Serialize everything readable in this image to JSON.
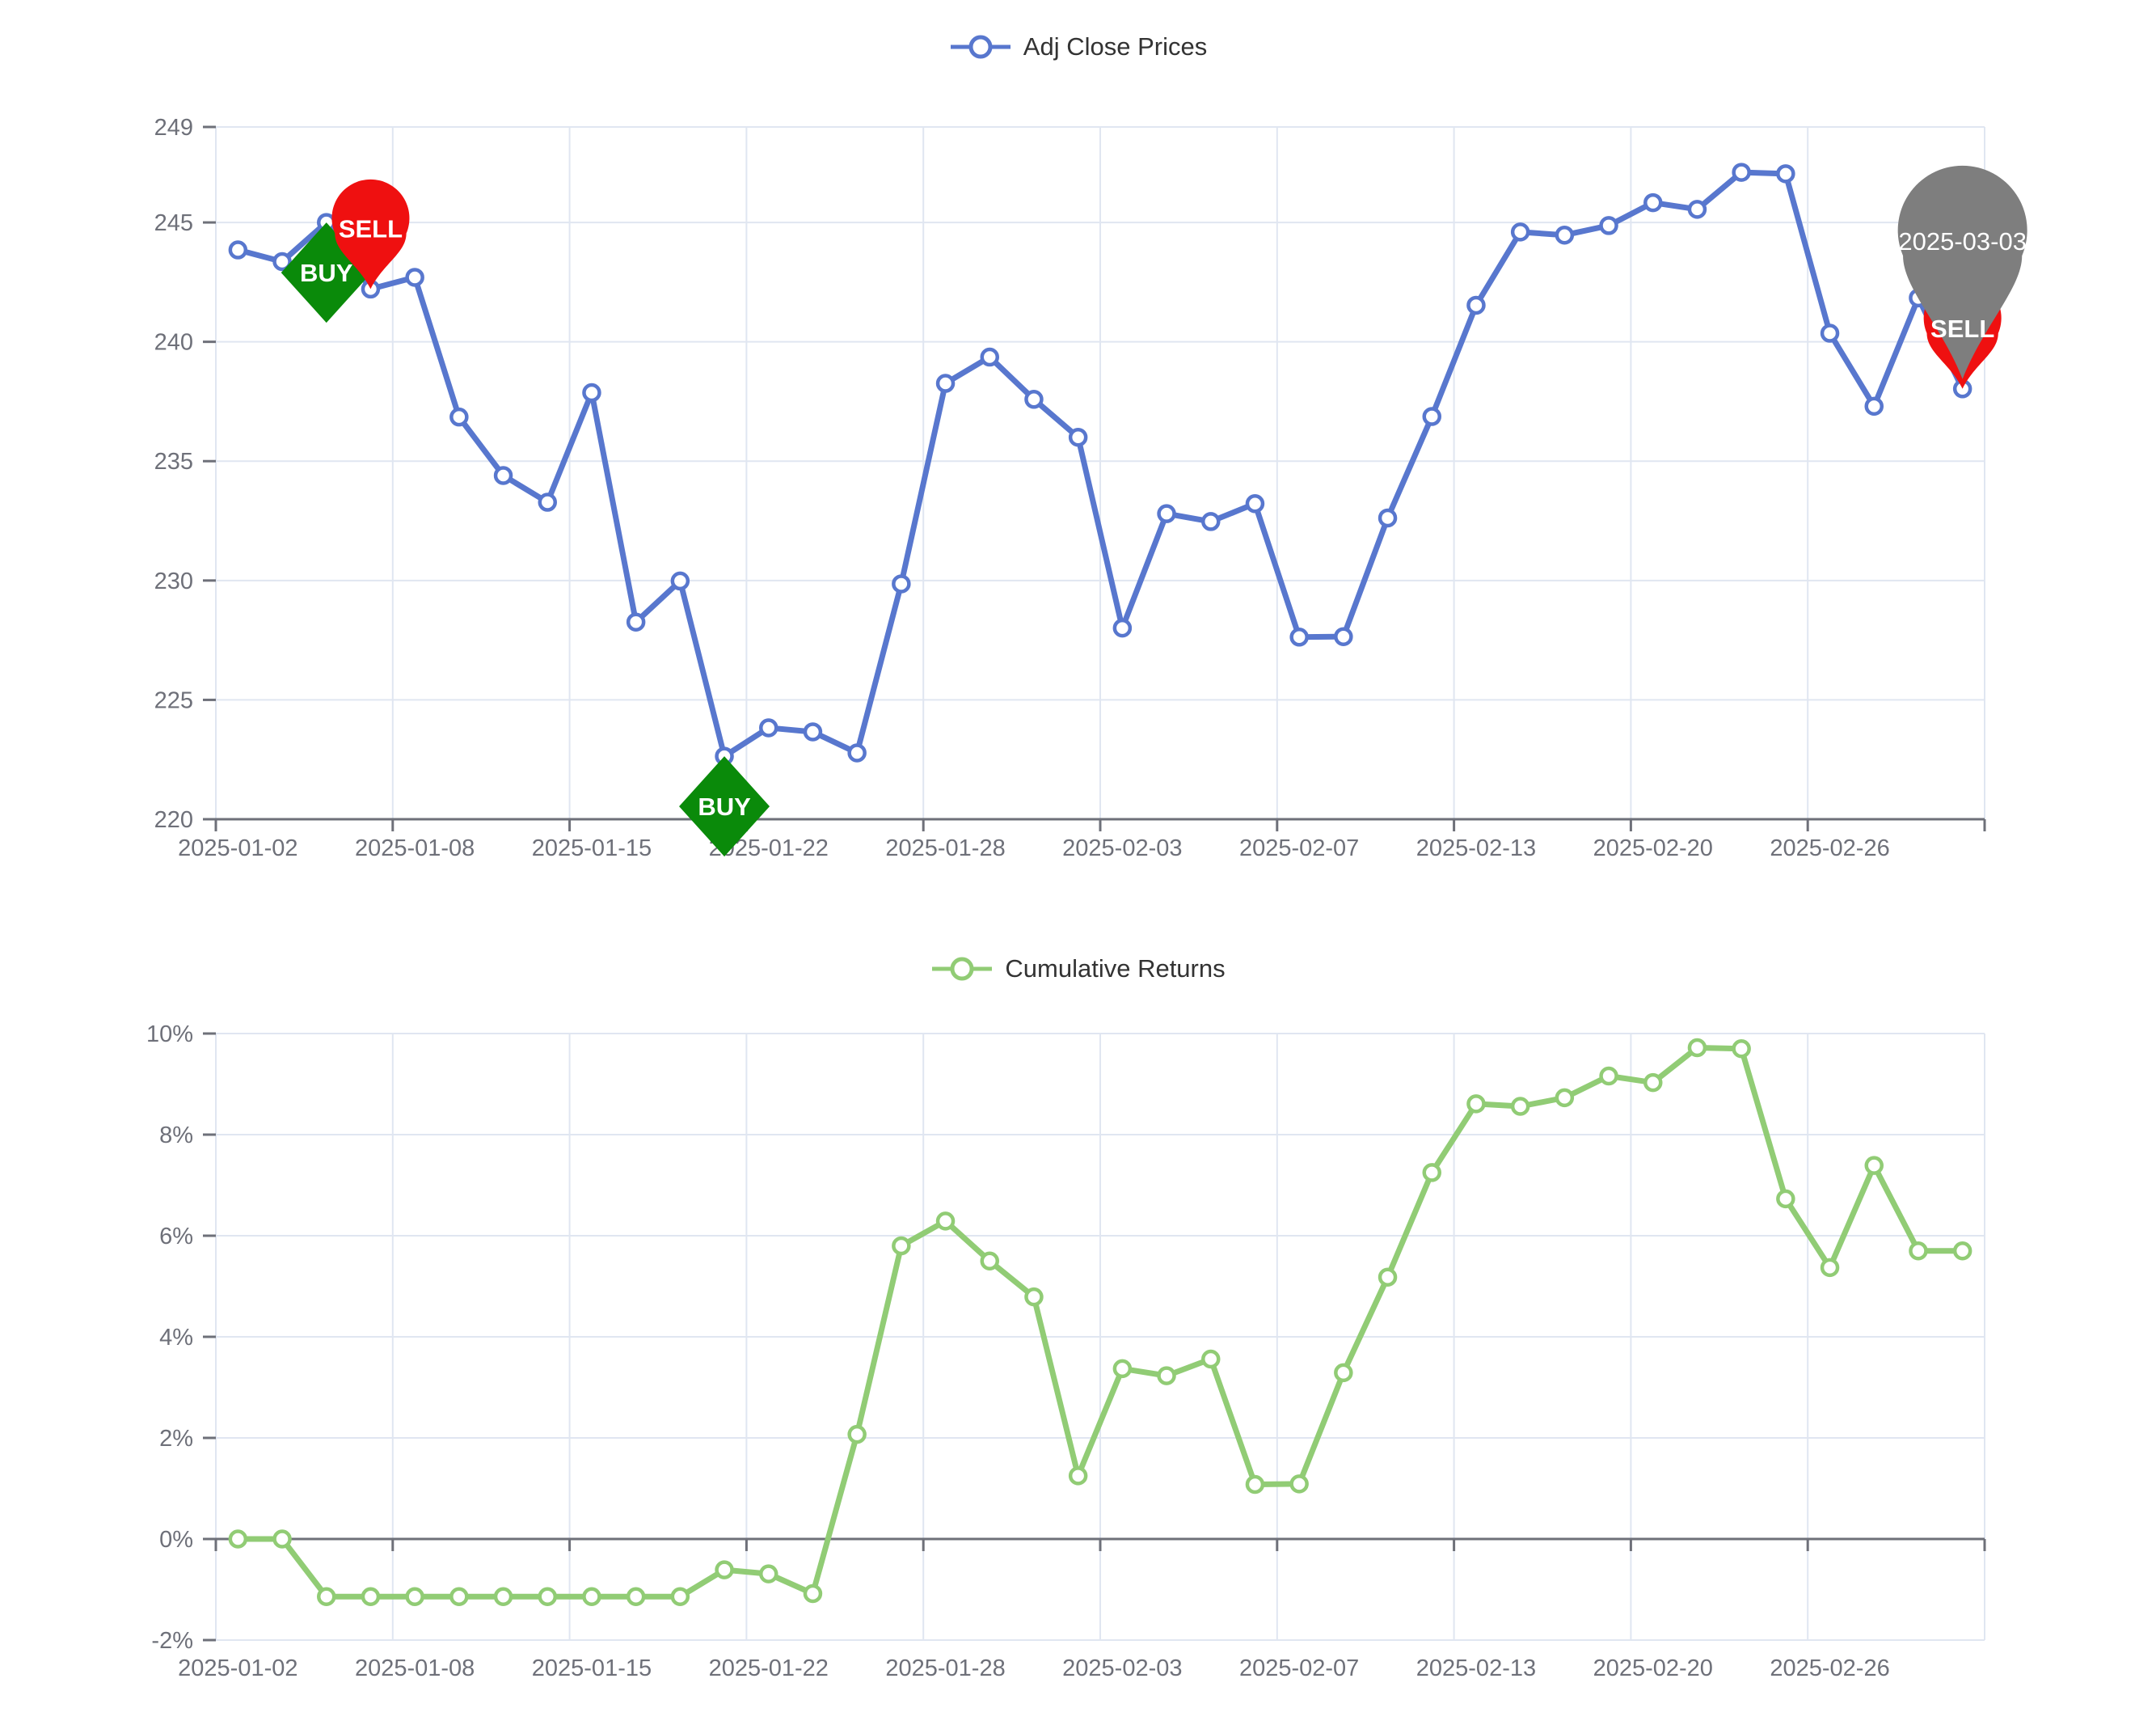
{
  "page": {
    "background": "#ffffff"
  },
  "style": {
    "axis_label_color": "#6E7079",
    "axis_line_color": "#6E7079",
    "grid_line_color": "#E0E6F1",
    "legend_text_color": "#333333",
    "marker_text_color": "#ffffff"
  },
  "chart_data": [
    {
      "type": "line",
      "title": "Adj Close Prices",
      "legend": "Adj Close Prices",
      "legend_position": "top-center",
      "series_color": "#5877CE",
      "marker_style": "hollow-circle",
      "grid": true,
      "ylim": [
        220,
        249
      ],
      "yticks": [
        220,
        225,
        230,
        235,
        240,
        245,
        249
      ],
      "ytick_labels": [
        "220",
        "225",
        "230",
        "235",
        "240",
        "245",
        "249"
      ],
      "x_axis_at": 220,
      "x": [
        "2025-01-02",
        "2025-01-03",
        "2025-01-06",
        "2025-01-07",
        "2025-01-08",
        "2025-01-10",
        "2025-01-13",
        "2025-01-14",
        "2025-01-15",
        "2025-01-16",
        "2025-01-17",
        "2025-01-21",
        "2025-01-22",
        "2025-01-23",
        "2025-01-24",
        "2025-01-27",
        "2025-01-28",
        "2025-01-29",
        "2025-01-30",
        "2025-01-31",
        "2025-02-03",
        "2025-02-04",
        "2025-02-05",
        "2025-02-06",
        "2025-02-07",
        "2025-02-10",
        "2025-02-11",
        "2025-02-12",
        "2025-02-13",
        "2025-02-14",
        "2025-02-18",
        "2025-02-19",
        "2025-02-20",
        "2025-02-21",
        "2025-02-24",
        "2025-02-25",
        "2025-02-26",
        "2025-02-27",
        "2025-02-28",
        "2025-03-03"
      ],
      "values": [
        243.85,
        243.36,
        245.0,
        242.21,
        242.7,
        236.85,
        234.4,
        233.28,
        237.87,
        228.26,
        229.98,
        222.64,
        223.83,
        223.66,
        222.78,
        229.86,
        238.26,
        239.36,
        237.59,
        236.0,
        228.01,
        232.8,
        232.47,
        233.22,
        227.63,
        227.65,
        232.62,
        236.87,
        241.53,
        244.6,
        244.47,
        244.87,
        245.83,
        245.55,
        247.1,
        247.04,
        240.36,
        237.3,
        241.84,
        238.03
      ],
      "x_label_indices": [
        0,
        4,
        8,
        12,
        16,
        20,
        24,
        28,
        32,
        36
      ],
      "x_labels_shown": [
        "2025-01-02",
        "2025-01-08",
        "2025-01-15",
        "2025-01-22",
        "2025-01-28",
        "2025-02-03",
        "2025-02-07",
        "2025-02-13",
        "2025-02-20",
        "2025-02-26"
      ],
      "markers": [
        {
          "kind": "buy",
          "label": "BUY",
          "date": "2025-01-06",
          "value": 245.0,
          "shape": "diamond",
          "color": "#0A8A0A",
          "text_color": "#ffffff"
        },
        {
          "kind": "sell",
          "label": "SELL",
          "date": "2025-01-07",
          "value": 242.21,
          "shape": "pin",
          "color": "#EF1010",
          "text_color": "#ffffff"
        },
        {
          "kind": "buy",
          "label": "BUY",
          "date": "2025-01-21",
          "value": 222.64,
          "shape": "diamond",
          "color": "#0A8A0A",
          "text_color": "#ffffff"
        },
        {
          "kind": "sell",
          "label": "SELL",
          "date": "2025-03-03",
          "value": 238.03,
          "shape": "pin",
          "color": "#EF1010",
          "text_color": "#ffffff"
        },
        {
          "kind": "date-flag",
          "label": "2025-03-03",
          "date": "2025-03-03",
          "value": 238.03,
          "shape": "pin-large",
          "color": "#7E7E7E",
          "text_color": "#ffffff"
        }
      ]
    },
    {
      "type": "line",
      "title": "Cumulative Returns",
      "legend": "Cumulative Returns",
      "legend_position": "top-center",
      "series_color": "#91CC75",
      "marker_style": "hollow-circle",
      "grid": true,
      "ylim": [
        -2,
        10
      ],
      "yticks": [
        -2,
        0,
        2,
        4,
        6,
        8,
        10
      ],
      "ytick_labels": [
        "-2%",
        "0%",
        "2%",
        "4%",
        "6%",
        "8%",
        "10%"
      ],
      "x_axis_at": 0,
      "x": [
        "2025-01-02",
        "2025-01-03",
        "2025-01-06",
        "2025-01-07",
        "2025-01-08",
        "2025-01-10",
        "2025-01-13",
        "2025-01-14",
        "2025-01-15",
        "2025-01-16",
        "2025-01-17",
        "2025-01-21",
        "2025-01-22",
        "2025-01-23",
        "2025-01-24",
        "2025-01-27",
        "2025-01-28",
        "2025-01-29",
        "2025-01-30",
        "2025-01-31",
        "2025-02-03",
        "2025-02-04",
        "2025-02-05",
        "2025-02-06",
        "2025-02-07",
        "2025-02-10",
        "2025-02-11",
        "2025-02-12",
        "2025-02-13",
        "2025-02-14",
        "2025-02-18",
        "2025-02-19",
        "2025-02-20",
        "2025-02-21",
        "2025-02-24",
        "2025-02-25",
        "2025-02-26",
        "2025-02-27",
        "2025-02-28",
        "2025-03-03"
      ],
      "values": [
        0.0,
        0.0,
        -1.14,
        -1.14,
        -1.14,
        -1.14,
        -1.14,
        -1.14,
        -1.14,
        -1.14,
        -1.14,
        -0.61,
        -0.69,
        -1.08,
        2.07,
        5.8,
        6.29,
        5.5,
        4.79,
        1.25,
        3.37,
        3.23,
        3.56,
        1.08,
        1.09,
        3.29,
        5.18,
        7.25,
        8.61,
        8.56,
        8.73,
        9.16,
        9.03,
        9.72,
        9.7,
        6.73,
        5.37,
        7.39,
        5.7,
        5.7
      ],
      "x_label_indices": [
        0,
        4,
        8,
        12,
        16,
        20,
        24,
        28,
        32,
        36
      ],
      "x_labels_shown": [
        "2025-01-02",
        "2025-01-08",
        "2025-01-15",
        "2025-01-22",
        "2025-01-28",
        "2025-02-03",
        "2025-02-07",
        "2025-02-13",
        "2025-02-20",
        "2025-02-26"
      ],
      "markers": []
    }
  ]
}
